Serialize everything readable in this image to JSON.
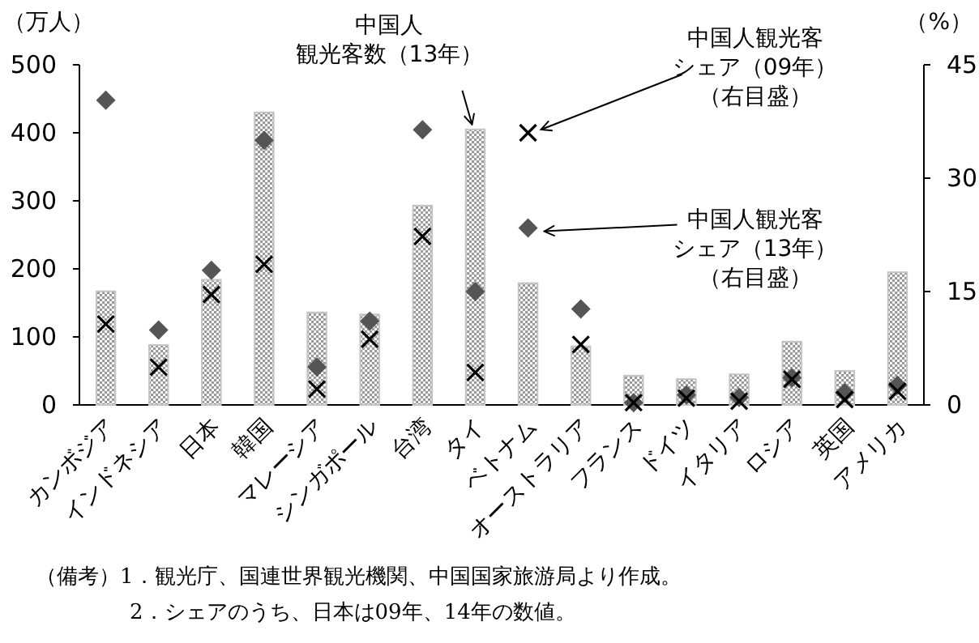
{
  "chart_data": {
    "type": "bar",
    "ylabel": "（万人）",
    "y2label": "（%）",
    "categories": [
      "カンボジア",
      "インドネシア",
      "日本",
      "韓国",
      "マレーシア",
      "シンガポール",
      "台湾",
      "タイ",
      "ベトナム",
      "オーストラリア",
      "フランス",
      "ドイツ",
      "イタリア",
      "ロシア",
      "英国",
      "アメリカ"
    ],
    "ylim": [
      0,
      500
    ],
    "yticks": [
      0,
      100,
      200,
      300,
      400,
      500
    ],
    "y2lim": [
      0,
      45
    ],
    "y2ticks": [
      0,
      15,
      30,
      45
    ],
    "series": [
      {
        "type": "bar",
        "color": "#c4c4c4",
        "values": [
          167,
          88,
          184,
          430,
          136,
          133,
          293,
          405,
          179,
          86,
          43,
          38,
          45,
          93,
          50,
          195
        ]
      },
      {
        "type": "scatter",
        "axis": "y2",
        "marker": "diamond",
        "color": "#555555",
        "values": [
          40.3,
          9.9,
          17.8,
          35,
          5,
          11.1,
          36.4,
          15,
          23.4,
          12.7,
          0.3,
          1.3,
          1,
          3.6,
          1.6,
          2.6
        ]
      },
      {
        "type": "scatter",
        "axis": "y2",
        "marker": "cross",
        "color": "#000000",
        "values": [
          10.7,
          5,
          14.6,
          18.6,
          2.1,
          8.7,
          22.3,
          4.3,
          36,
          8,
          0.3,
          0.9,
          0.5,
          3.4,
          0.7,
          1.8
        ]
      }
    ],
    "annotations": [
      "中国人",
      {
        "text": "観光客数（13年）",
        "x": "タイ",
        "y": 405
      },
      "中国人観光客",
      {
        "text": "シェア（09年）",
        "x": "ベトナム",
        "y": 400
      },
      "（右目盛）",
      {
        "text": "中国人観光客",
        "x": "ベトナム",
        "y": 260
      },
      "シェア（13年）",
      "（右目盛）",
      "（備考）1．観光庁、国連世界観光機関、中国国家旅游局より作成。",
      "2．シェアのうち、日本は09年、14年の数値。"
    ]
  }
}
